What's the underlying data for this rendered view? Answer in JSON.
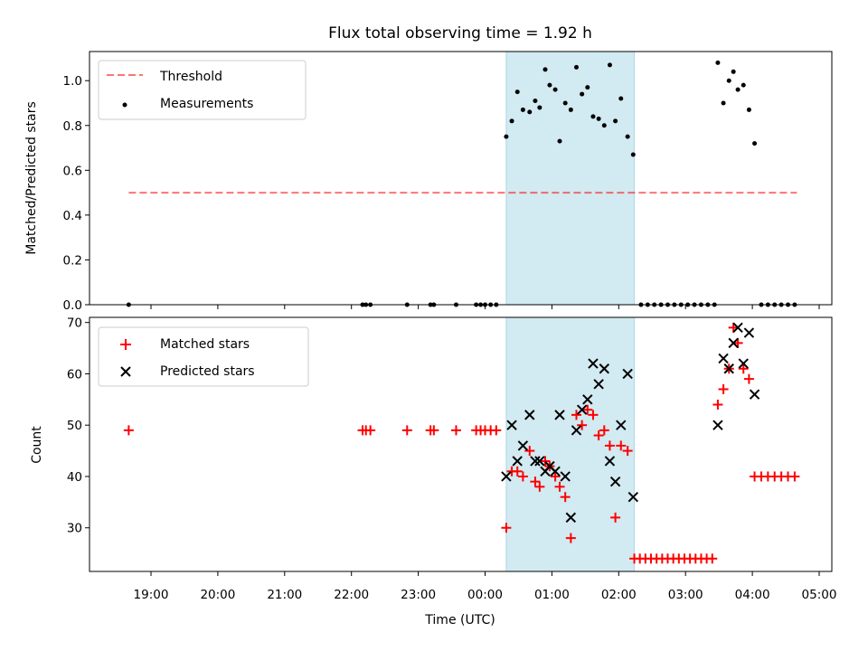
{
  "chart_data": [
    {
      "type": "scatter",
      "title": "Flux total observing time = 1.92 h",
      "xlabel": "",
      "ylabel": "Matched/Predicted stars",
      "ylim": [
        0,
        1.13
      ],
      "yticks": [
        "0.0",
        "0.2",
        "0.4",
        "0.6",
        "0.8",
        "1.0"
      ],
      "ytick_values": [
        0,
        0.2,
        0.4,
        0.6,
        0.8,
        1.0
      ],
      "shaded_region": {
        "x": [
          "00:19",
          "02:14"
        ],
        "color": "#add8e6"
      },
      "threshold": {
        "name": "Threshold",
        "y": 0.5,
        "x": [
          "18:40",
          "04:40"
        ],
        "color": "#ff0000"
      },
      "legend": {
        "position": "top-left",
        "entries": [
          "Threshold",
          "Measurements"
        ]
      },
      "series": [
        {
          "name": "Measurements",
          "color": "#000000",
          "points": [
            [
              "18:40",
              0.0
            ],
            [
              "22:10",
              0.0
            ],
            [
              "22:13",
              0.0
            ],
            [
              "22:17",
              0.0
            ],
            [
              "22:50",
              0.0
            ],
            [
              "23:11",
              0.0
            ],
            [
              "23:14",
              0.0
            ],
            [
              "23:34",
              0.0
            ],
            [
              "23:52",
              0.0
            ],
            [
              "23:56",
              0.0
            ],
            [
              "24:00",
              0.0
            ],
            [
              "24:05",
              0.0
            ],
            [
              "24:10",
              0.0
            ],
            [
              "00:19",
              0.75
            ],
            [
              "00:24",
              0.82
            ],
            [
              "00:29",
              0.95
            ],
            [
              "00:34",
              0.87
            ],
            [
              "00:40",
              0.86
            ],
            [
              "00:45",
              0.91
            ],
            [
              "00:49",
              0.88
            ],
            [
              "00:54",
              1.05
            ],
            [
              "00:58",
              0.98
            ],
            [
              "01:03",
              0.96
            ],
            [
              "01:07",
              0.73
            ],
            [
              "01:12",
              0.9
            ],
            [
              "01:17",
              0.87
            ],
            [
              "01:22",
              1.06
            ],
            [
              "01:27",
              0.94
            ],
            [
              "01:32",
              0.97
            ],
            [
              "01:37",
              0.84
            ],
            [
              "01:42",
              0.83
            ],
            [
              "01:47",
              0.8
            ],
            [
              "01:52",
              1.07
            ],
            [
              "01:57",
              0.82
            ],
            [
              "02:02",
              0.92
            ],
            [
              "02:08",
              0.75
            ],
            [
              "02:13",
              0.67
            ],
            [
              "02:20",
              0.0
            ],
            [
              "02:26",
              0.0
            ],
            [
              "02:32",
              0.0
            ],
            [
              "02:38",
              0.0
            ],
            [
              "02:44",
              0.0
            ],
            [
              "02:50",
              0.0
            ],
            [
              "02:56",
              0.0
            ],
            [
              "03:02",
              0.0
            ],
            [
              "03:08",
              0.0
            ],
            [
              "03:14",
              0.0
            ],
            [
              "03:20",
              0.0
            ],
            [
              "03:26",
              0.0
            ],
            [
              "03:29",
              1.08
            ],
            [
              "03:34",
              0.9
            ],
            [
              "03:39",
              1.0
            ],
            [
              "03:43",
              1.04
            ],
            [
              "03:47",
              0.96
            ],
            [
              "03:52",
              0.98
            ],
            [
              "03:57",
              0.87
            ],
            [
              "04:02",
              0.72
            ],
            [
              "04:08",
              0.0
            ],
            [
              "04:14",
              0.0
            ],
            [
              "04:20",
              0.0
            ],
            [
              "04:26",
              0.0
            ],
            [
              "04:32",
              0.0
            ],
            [
              "04:38",
              0.0
            ]
          ]
        }
      ]
    },
    {
      "type": "scatter",
      "title": "",
      "xlabel": "Time (UTC)",
      "ylabel": "Count",
      "ylim": [
        21.5,
        71
      ],
      "yticks": [
        "30",
        "40",
        "50",
        "60",
        "70"
      ],
      "ytick_values": [
        30,
        40,
        50,
        60,
        70
      ],
      "xticks": [
        "19:00",
        "20:00",
        "21:00",
        "22:00",
        "23:00",
        "00:00",
        "01:00",
        "02:00",
        "03:00",
        "04:00",
        "05:00"
      ],
      "shaded_region": {
        "x": [
          "00:19",
          "02:14"
        ],
        "color": "#add8e6"
      },
      "legend": {
        "position": "top-left",
        "entries": [
          "Matched stars",
          "Predicted stars"
        ]
      },
      "series": [
        {
          "name": "Matched stars",
          "color": "#ff0000",
          "marker": "+",
          "points": [
            [
              "18:40",
              49
            ],
            [
              "22:10",
              49
            ],
            [
              "22:13",
              49
            ],
            [
              "22:17",
              49
            ],
            [
              "22:50",
              49
            ],
            [
              "23:11",
              49
            ],
            [
              "23:14",
              49
            ],
            [
              "23:34",
              49
            ],
            [
              "23:52",
              49
            ],
            [
              "23:56",
              49
            ],
            [
              "24:00",
              49
            ],
            [
              "24:05",
              49
            ],
            [
              "24:10",
              49
            ],
            [
              "00:19",
              30
            ],
            [
              "00:24",
              41
            ],
            [
              "00:29",
              41
            ],
            [
              "00:34",
              40
            ],
            [
              "00:40",
              45
            ],
            [
              "00:45",
              39
            ],
            [
              "00:49",
              38
            ],
            [
              "00:54",
              43
            ],
            [
              "00:58",
              42
            ],
            [
              "01:03",
              40
            ],
            [
              "01:07",
              38
            ],
            [
              "01:12",
              36
            ],
            [
              "01:17",
              28
            ],
            [
              "01:22",
              52
            ],
            [
              "01:27",
              50
            ],
            [
              "01:32",
              53
            ],
            [
              "01:37",
              52
            ],
            [
              "01:42",
              48
            ],
            [
              "01:47",
              49
            ],
            [
              "01:52",
              46
            ],
            [
              "01:57",
              32
            ],
            [
              "02:02",
              46
            ],
            [
              "02:08",
              45
            ],
            [
              "02:14",
              24
            ],
            [
              "02:19",
              24
            ],
            [
              "02:24",
              24
            ],
            [
              "02:29",
              24
            ],
            [
              "02:34",
              24
            ],
            [
              "02:39",
              24
            ],
            [
              "02:44",
              24
            ],
            [
              "02:49",
              24
            ],
            [
              "02:54",
              24
            ],
            [
              "02:59",
              24
            ],
            [
              "03:04",
              24
            ],
            [
              "03:09",
              24
            ],
            [
              "03:14",
              24
            ],
            [
              "03:19",
              24
            ],
            [
              "03:24",
              24
            ],
            [
              "03:29",
              54
            ],
            [
              "03:34",
              57
            ],
            [
              "03:39",
              61
            ],
            [
              "03:43",
              69
            ],
            [
              "03:47",
              66
            ],
            [
              "03:52",
              61
            ],
            [
              "03:57",
              59
            ],
            [
              "04:02",
              40
            ],
            [
              "04:08",
              40
            ],
            [
              "04:14",
              40
            ],
            [
              "04:20",
              40
            ],
            [
              "04:26",
              40
            ],
            [
              "04:32",
              40
            ],
            [
              "04:38",
              40
            ]
          ]
        },
        {
          "name": "Predicted stars",
          "color": "#000000",
          "marker": "x",
          "points": [
            [
              "00:19",
              40
            ],
            [
              "00:24",
              50
            ],
            [
              "00:29",
              43
            ],
            [
              "00:34",
              46
            ],
            [
              "00:40",
              52
            ],
            [
              "00:45",
              43
            ],
            [
              "00:49",
              43
            ],
            [
              "00:54",
              41
            ],
            [
              "00:58",
              42
            ],
            [
              "01:03",
              41
            ],
            [
              "01:07",
              52
            ],
            [
              "01:12",
              40
            ],
            [
              "01:17",
              32
            ],
            [
              "01:22",
              49
            ],
            [
              "01:27",
              53
            ],
            [
              "01:32",
              55
            ],
            [
              "01:37",
              62
            ],
            [
              "01:42",
              58
            ],
            [
              "01:47",
              61
            ],
            [
              "01:52",
              43
            ],
            [
              "01:57",
              39
            ],
            [
              "02:02",
              50
            ],
            [
              "02:08",
              60
            ],
            [
              "02:13",
              36
            ],
            [
              "03:29",
              50
            ],
            [
              "03:34",
              63
            ],
            [
              "03:39",
              61
            ],
            [
              "03:43",
              66
            ],
            [
              "03:47",
              69
            ],
            [
              "03:52",
              62
            ],
            [
              "03:57",
              68
            ],
            [
              "04:02",
              56
            ]
          ]
        }
      ]
    }
  ]
}
